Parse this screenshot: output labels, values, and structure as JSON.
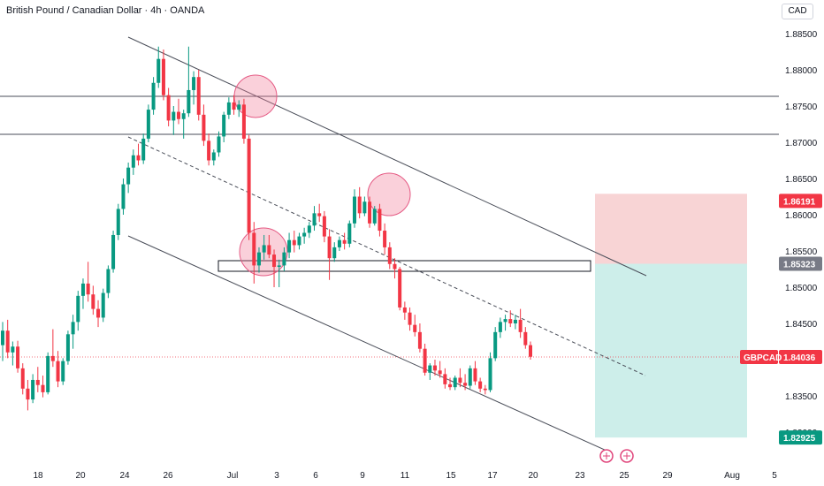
{
  "title": "British Pound / Canadian Dollar · 4h · OANDA",
  "currency": "CAD",
  "symbol_label": "GBPCAD",
  "colors": {
    "up": "#089981",
    "down": "#f23645",
    "stop": "#f8d4d5",
    "target": "#cdeeea",
    "entry_badge": "#787b86",
    "target_badge": "#089981",
    "stop_badge": "#f23645",
    "price_badge": "#f23645"
  },
  "chart_data": {
    "type": "candlestick",
    "ylim": [
      1.8262,
      1.888
    ],
    "yticks": [
      "1.88500",
      "1.88000",
      "1.87500",
      "1.87000",
      "1.86500",
      "1.86000",
      "1.85500",
      "1.85000",
      "1.84500",
      "1.83500",
      "1.83000"
    ],
    "xticks": [
      "18",
      "20",
      "24",
      "26",
      "Jul",
      "3",
      "6",
      "9",
      "11",
      "15",
      "17",
      "20",
      "23",
      "25",
      "29",
      "Aug",
      "5"
    ],
    "current_price": "1.84036",
    "position": {
      "stop": "1.86191",
      "entry": "1.85323",
      "target": "1.82925"
    },
    "candles": [
      [
        1.842,
        1.8452,
        1.8398,
        1.844
      ],
      [
        1.844,
        1.8455,
        1.8402,
        1.841
      ],
      [
        1.841,
        1.8425,
        1.8392,
        1.8418
      ],
      [
        1.8418,
        1.8426,
        1.8382,
        1.8388
      ],
      [
        1.8388,
        1.8395,
        1.8352,
        1.836
      ],
      [
        1.836,
        1.8372,
        1.833,
        1.8345
      ],
      [
        1.8345,
        1.838,
        1.834,
        1.8372
      ],
      [
        1.8372,
        1.839,
        1.8355,
        1.8365
      ],
      [
        1.8365,
        1.8378,
        1.8348,
        1.8355
      ],
      [
        1.8355,
        1.841,
        1.8352,
        1.8405
      ],
      [
        1.8405,
        1.8442,
        1.839,
        1.8398
      ],
      [
        1.8398,
        1.8412,
        1.8362,
        1.837
      ],
      [
        1.837,
        1.8402,
        1.8365,
        1.8398
      ],
      [
        1.8398,
        1.844,
        1.8393,
        1.8435
      ],
      [
        1.8435,
        1.8462,
        1.8415,
        1.8452
      ],
      [
        1.8452,
        1.8495,
        1.844,
        1.8488
      ],
      [
        1.8488,
        1.8512,
        1.847,
        1.8505
      ],
      [
        1.8505,
        1.8535,
        1.848,
        1.849
      ],
      [
        1.849,
        1.8502,
        1.8462,
        1.847
      ],
      [
        1.847,
        1.8482,
        1.8445,
        1.8458
      ],
      [
        1.8458,
        1.8498,
        1.8452,
        1.8492
      ],
      [
        1.8492,
        1.853,
        1.8485,
        1.8525
      ],
      [
        1.8525,
        1.8578,
        1.852,
        1.8572
      ],
      [
        1.8572,
        1.8615,
        1.8565,
        1.8608
      ],
      [
        1.8608,
        1.865,
        1.86,
        1.8642
      ],
      [
        1.8642,
        1.8672,
        1.863,
        1.8665
      ],
      [
        1.8665,
        1.869,
        1.8655,
        1.8682
      ],
      [
        1.8682,
        1.8698,
        1.8668,
        1.8675
      ],
      [
        1.8675,
        1.8712,
        1.867,
        1.8705
      ],
      [
        1.8705,
        1.8752,
        1.87,
        1.8745
      ],
      [
        1.8745,
        1.879,
        1.8738,
        1.8782
      ],
      [
        1.8782,
        1.8832,
        1.8775,
        1.8815
      ],
      [
        1.8815,
        1.8828,
        1.8758,
        1.8765
      ],
      [
        1.8765,
        1.8775,
        1.8722,
        1.873
      ],
      [
        1.873,
        1.875,
        1.871,
        1.8742
      ],
      [
        1.8742,
        1.876,
        1.8725,
        1.8732
      ],
      [
        1.8732,
        1.8745,
        1.8705,
        1.874
      ],
      [
        1.874,
        1.8832,
        1.8735,
        1.8772
      ],
      [
        1.8772,
        1.8798,
        1.8752,
        1.879
      ],
      [
        1.879,
        1.88,
        1.873,
        1.8738
      ],
      [
        1.8738,
        1.8752,
        1.8695,
        1.8702
      ],
      [
        1.8702,
        1.8712,
        1.8668,
        1.8675
      ],
      [
        1.8675,
        1.869,
        1.8668,
        1.8686
      ],
      [
        1.8686,
        1.8715,
        1.868,
        1.8708
      ],
      [
        1.8708,
        1.8742,
        1.87,
        1.8738
      ],
      [
        1.8738,
        1.8762,
        1.8732,
        1.8755
      ],
      [
        1.8755,
        1.8765,
        1.8738,
        1.8745
      ],
      [
        1.8745,
        1.8758,
        1.8735,
        1.8752
      ],
      [
        1.8752,
        1.876,
        1.8698,
        1.8705
      ],
      [
        1.8705,
        1.871,
        1.8565,
        1.8575
      ],
      [
        1.8575,
        1.859,
        1.8505,
        1.853
      ],
      [
        1.853,
        1.8555,
        1.852,
        1.8548
      ],
      [
        1.8548,
        1.8572,
        1.8538,
        1.8558
      ],
      [
        1.8558,
        1.8572,
        1.854,
        1.8545
      ],
      [
        1.8545,
        1.8552,
        1.85,
        1.8528
      ],
      [
        1.8528,
        1.8538,
        1.85,
        1.853
      ],
      [
        1.853,
        1.8555,
        1.8522,
        1.8548
      ],
      [
        1.8548,
        1.8575,
        1.854,
        1.8565
      ],
      [
        1.8565,
        1.8578,
        1.8548,
        1.8558
      ],
      [
        1.8558,
        1.8575,
        1.8552,
        1.857
      ],
      [
        1.857,
        1.8582,
        1.856,
        1.8575
      ],
      [
        1.8575,
        1.859,
        1.8568,
        1.8585
      ],
      [
        1.8585,
        1.8612,
        1.8578,
        1.8602
      ],
      [
        1.8602,
        1.8615,
        1.859,
        1.8598
      ],
      [
        1.8598,
        1.8605,
        1.8562,
        1.857
      ],
      [
        1.857,
        1.858,
        1.851,
        1.854
      ],
      [
        1.854,
        1.8562,
        1.8535,
        1.8555
      ],
      [
        1.8555,
        1.857,
        1.855,
        1.8565
      ],
      [
        1.8565,
        1.8575,
        1.8552,
        1.856
      ],
      [
        1.856,
        1.8592,
        1.8555,
        1.8588
      ],
      [
        1.8588,
        1.8635,
        1.8582,
        1.8625
      ],
      [
        1.8625,
        1.8638,
        1.8595,
        1.8602
      ],
      [
        1.8602,
        1.8625,
        1.8598,
        1.8618
      ],
      [
        1.8618,
        1.8625,
        1.8582,
        1.8588
      ],
      [
        1.8588,
        1.8612,
        1.8585,
        1.8608
      ],
      [
        1.8608,
        1.8615,
        1.857,
        1.8578
      ],
      [
        1.8578,
        1.8588,
        1.8545,
        1.8555
      ],
      [
        1.8555,
        1.8562,
        1.8525,
        1.8532
      ],
      [
        1.8532,
        1.854,
        1.8512,
        1.8525
      ],
      [
        1.8525,
        1.8528,
        1.8468,
        1.8472
      ],
      [
        1.8472,
        1.848,
        1.8455,
        1.8465
      ],
      [
        1.8465,
        1.8472,
        1.844,
        1.8448
      ],
      [
        1.8448,
        1.8462,
        1.8432,
        1.8438
      ],
      [
        1.8438,
        1.845,
        1.841,
        1.8415
      ],
      [
        1.8415,
        1.8422,
        1.8378,
        1.8382
      ],
      [
        1.8382,
        1.8395,
        1.8372,
        1.8392
      ],
      [
        1.8392,
        1.84,
        1.8378,
        1.8385
      ],
      [
        1.8385,
        1.8398,
        1.8375,
        1.838
      ],
      [
        1.838,
        1.8388,
        1.836,
        1.8366
      ],
      [
        1.8366,
        1.8375,
        1.8358,
        1.8362
      ],
      [
        1.8362,
        1.8378,
        1.8358,
        1.8375
      ],
      [
        1.8375,
        1.8388,
        1.8362,
        1.8368
      ],
      [
        1.8368,
        1.838,
        1.8358,
        1.8364
      ],
      [
        1.8364,
        1.8392,
        1.836,
        1.8388
      ],
      [
        1.8388,
        1.8398,
        1.8365,
        1.837
      ],
      [
        1.837,
        1.8375,
        1.8355,
        1.836
      ],
      [
        1.836,
        1.8365,
        1.8352,
        1.8358
      ],
      [
        1.8358,
        1.841,
        1.8355,
        1.8402
      ],
      [
        1.8402,
        1.8445,
        1.8398,
        1.8438
      ],
      [
        1.8438,
        1.8458,
        1.843,
        1.8452
      ],
      [
        1.8452,
        1.8462,
        1.844,
        1.8456
      ],
      [
        1.8456,
        1.8468,
        1.8445,
        1.845
      ],
      [
        1.845,
        1.8462,
        1.8442,
        1.8455
      ],
      [
        1.8455,
        1.847,
        1.843,
        1.8438
      ],
      [
        1.8438,
        1.8445,
        1.8415,
        1.842
      ],
      [
        1.842,
        1.8425,
        1.84,
        1.8404
      ]
    ]
  }
}
